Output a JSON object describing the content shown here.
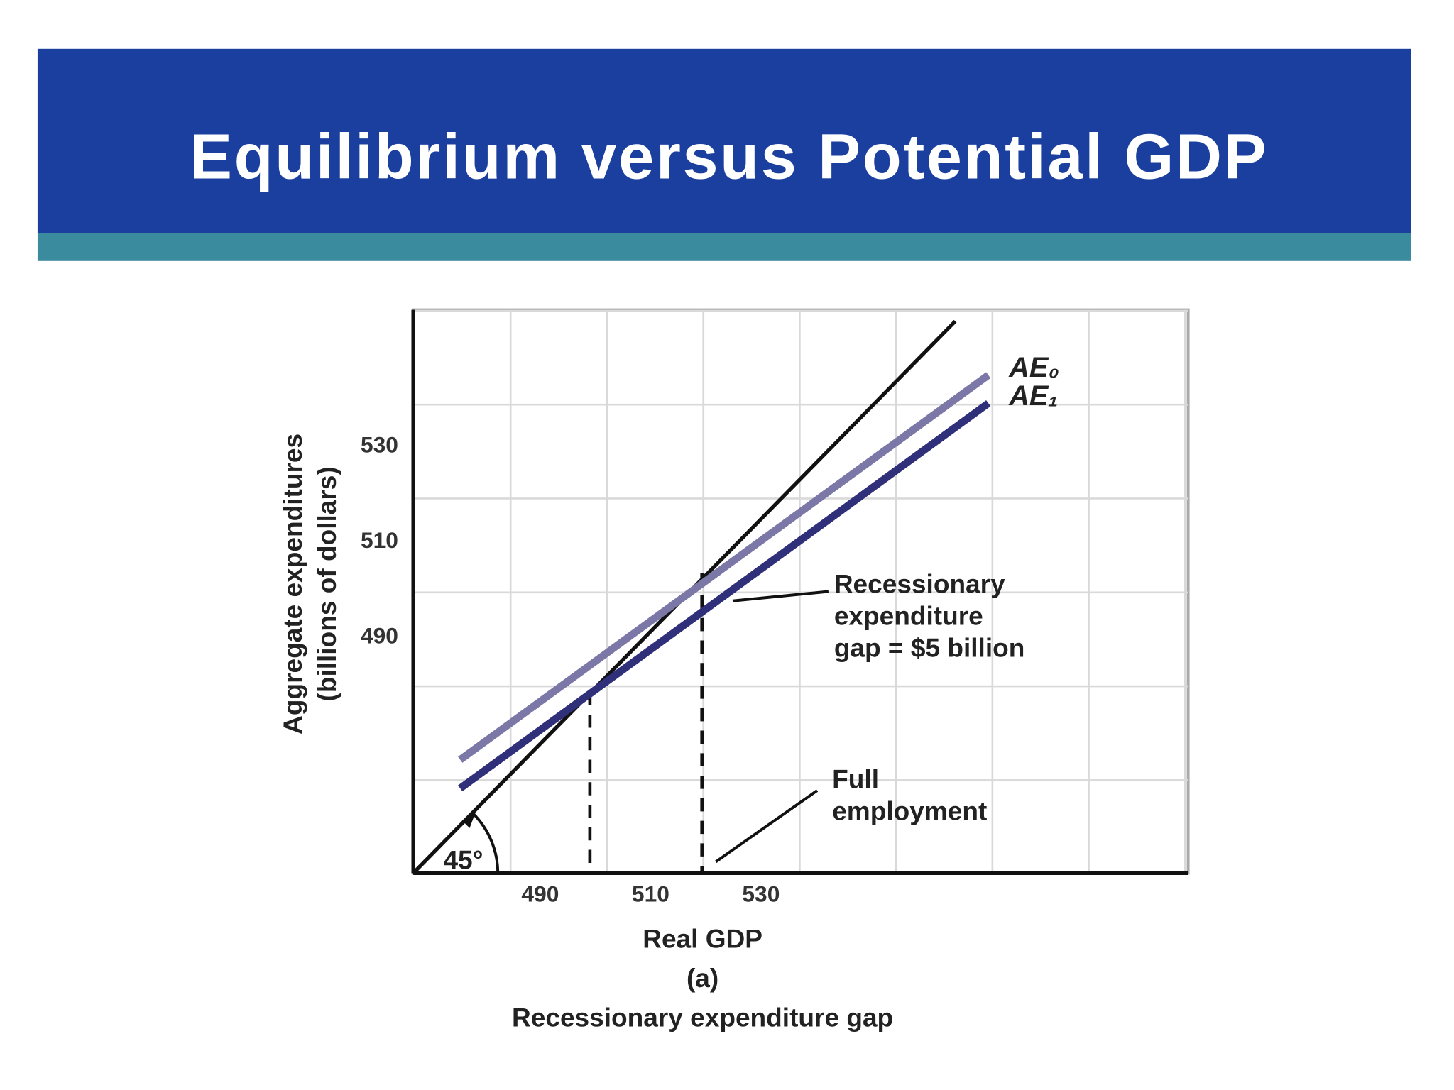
{
  "slide_title": "Equilibrium versus Potential GDP",
  "chart_data": {
    "type": "line",
    "xlabel": [
      "Real GDP",
      "(a)",
      "Recessionary expenditure gap"
    ],
    "ylabel": [
      "Aggregate expenditures",
      "(billions of dollars)"
    ],
    "xlim": [
      467,
      607.4
    ],
    "ylim": [
      440.5,
      558.7
    ],
    "xticks": [
      490,
      510,
      530
    ],
    "yticks": [
      490,
      510,
      530
    ],
    "grid": true,
    "series": [
      {
        "name": "45°-line",
        "color": "#111111",
        "x": [
          467,
          565.2
        ],
        "values": [
          440.5,
          556.3
        ]
      },
      {
        "name": "AE₀",
        "color": "#7b78a8",
        "x": [
          475.5,
          571.2
        ],
        "values": [
          464.3,
          545.0
        ]
      },
      {
        "name": "AE₁",
        "color": "#2f2f7a",
        "x": [
          475.5,
          571.2
        ],
        "values": [
          458.3,
          539.1
        ]
      }
    ],
    "guides": [
      {
        "x": 499.0,
        "y": 478.5
      },
      {
        "x": 519.3,
        "y": 503.5
      }
    ],
    "annotations": [
      {
        "text": [
          "Recessionary",
          "expenditure",
          "gap = $5 billion"
        ]
      },
      {
        "text": [
          "Full",
          "employment"
        ]
      },
      {
        "text": [
          "45°"
        ]
      }
    ]
  }
}
